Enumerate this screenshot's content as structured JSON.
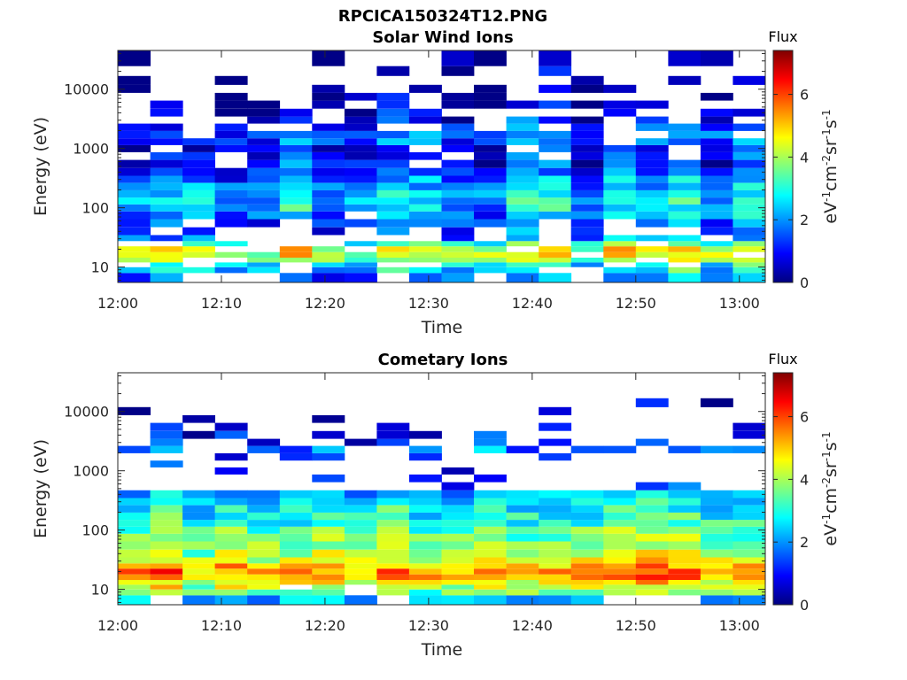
{
  "figure_title": "RPCICA150324T12.PNG",
  "colorbar": {
    "title": "Flux",
    "label_parts": [
      "eV",
      "-1",
      "cm",
      "-2",
      "sr",
      "-1",
      "s",
      "-1"
    ],
    "range": [
      0,
      7.4
    ],
    "ticks": [
      0,
      2,
      4,
      6
    ],
    "colormap": "jet"
  },
  "chart_data": [
    {
      "type": "heatmap",
      "title": "Solar Wind Ions",
      "xlabel": "Time",
      "ylabel": "Energy (eV)",
      "x_ticks": [
        "12:00",
        "12:10",
        "12:20",
        "12:30",
        "12:40",
        "12:50",
        "13:00"
      ],
      "x_range_minutes": [
        0,
        62.5
      ],
      "y_scale": "log",
      "y_range": [
        5.5,
        45000
      ],
      "y_ticks": [
        10,
        100,
        1000,
        10000
      ],
      "grid": false,
      "profile_energy_eV": [
        7,
        9,
        11,
        13,
        16,
        20,
        25,
        30,
        40,
        55,
        75,
        100,
        130,
        170,
        230,
        300,
        400,
        550,
        750,
        1000,
        1300,
        1700,
        2300,
        3000,
        4000,
        5500,
        7500,
        10000,
        14000,
        20000,
        30000
      ],
      "profile_flux": [
        1.8,
        2.6,
        3.0,
        3.8,
        4.4,
        4.4,
        3.4,
        1.8,
        1.4,
        1.6,
        2.0,
        2.4,
        2.6,
        2.5,
        2.1,
        1.8,
        1.5,
        1.1,
        1.0,
        0.9,
        1.5,
        1.8,
        1.2,
        0.9,
        0.7,
        0.5,
        0.4,
        0.3,
        0.3,
        0.3,
        0.3
      ],
      "profile_coverage": [
        0.6,
        0.7,
        0.75,
        0.8,
        0.85,
        0.85,
        0.7,
        0.5,
        0.5,
        0.7,
        0.9,
        1.0,
        1.0,
        1.0,
        1.0,
        1.0,
        0.95,
        0.9,
        0.85,
        0.85,
        0.9,
        0.85,
        0.7,
        0.6,
        0.55,
        0.45,
        0.4,
        0.35,
        0.3,
        0.3,
        0.3
      ]
    },
    {
      "type": "heatmap",
      "title": "Cometary Ions",
      "xlabel": "Time",
      "ylabel": "Energy (eV)",
      "x_ticks": [
        "12:00",
        "12:10",
        "12:20",
        "12:30",
        "12:40",
        "12:50",
        "13:00"
      ],
      "x_range_minutes": [
        0,
        62.5
      ],
      "y_scale": "log",
      "y_range": [
        5.5,
        45000
      ],
      "y_ticks": [
        10,
        100,
        1000,
        10000
      ],
      "grid": false,
      "profile_energy_eV": [
        7,
        9,
        11,
        13,
        16,
        20,
        25,
        30,
        40,
        55,
        75,
        100,
        130,
        170,
        230,
        300,
        400,
        550,
        750,
        1000,
        1300,
        1700,
        2300,
        3000,
        4000,
        5500,
        7500,
        10000,
        14000,
        20000,
        30000
      ],
      "profile_flux": [
        2.4,
        3.6,
        4.2,
        4.6,
        5.2,
        5.4,
        5.0,
        4.3,
        4.0,
        3.8,
        3.6,
        3.4,
        3.1,
        2.9,
        2.7,
        2.5,
        2.1,
        1.2,
        1.0,
        0.9,
        0.8,
        1.0,
        1.6,
        1.0,
        0.8,
        0.5,
        0.4,
        0.3,
        0.3,
        0.3,
        0.3
      ],
      "profile_coverage": [
        0.8,
        0.9,
        0.95,
        1.0,
        1.0,
        1.0,
        1.0,
        1.0,
        1.0,
        1.0,
        1.0,
        1.0,
        1.0,
        1.0,
        1.0,
        1.0,
        1.0,
        0.25,
        0.2,
        0.2,
        0.15,
        0.2,
        0.65,
        0.25,
        0.35,
        0.15,
        0.08,
        0.05,
        0.03,
        0.02,
        0.01
      ]
    }
  ]
}
